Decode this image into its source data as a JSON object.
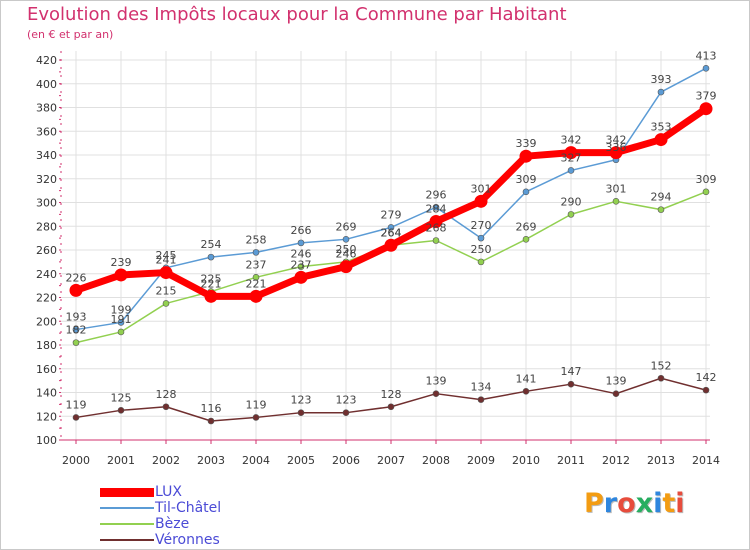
{
  "title": "Evolution des Impôts locaux pour la Commune par Habitant",
  "subtitle": "(en € et par an)",
  "logo": {
    "text": "Proxiti",
    "letter_colors": [
      "#f39c12",
      "#2e86de",
      "#e74c3c",
      "#27ae60",
      "#2e86de",
      "#f39c12",
      "#e74c3c"
    ]
  },
  "chart_data": {
    "type": "line",
    "x": [
      2000,
      2001,
      2002,
      2003,
      2004,
      2005,
      2006,
      2007,
      2008,
      2009,
      2010,
      2011,
      2012,
      2013,
      2014
    ],
    "ylim": [
      100,
      420
    ],
    "ytick_step": 20,
    "grid": true,
    "legend_position": "bottom-left",
    "series": [
      {
        "name": "LUX",
        "color": "#ff0000",
        "values": [
          226,
          239,
          241,
          221,
          221,
          237,
          246,
          264,
          284,
          301,
          339,
          342,
          342,
          353,
          379
        ]
      },
      {
        "name": "Til-Châtel",
        "color": "#5b9bd5",
        "values": [
          193,
          199,
          245,
          254,
          258,
          266,
          269,
          279,
          296,
          270,
          309,
          327,
          336,
          393,
          413
        ]
      },
      {
        "name": "Bèze",
        "color": "#92d050",
        "values": [
          182,
          191,
          215,
          225,
          237,
          246,
          250,
          264,
          268,
          250,
          269,
          290,
          301,
          294,
          309
        ]
      },
      {
        "name": "Véronnes",
        "color": "#702f2f",
        "values": [
          119,
          125,
          128,
          116,
          119,
          123,
          123,
          128,
          139,
          134,
          141,
          147,
          139,
          152,
          142
        ]
      }
    ]
  }
}
